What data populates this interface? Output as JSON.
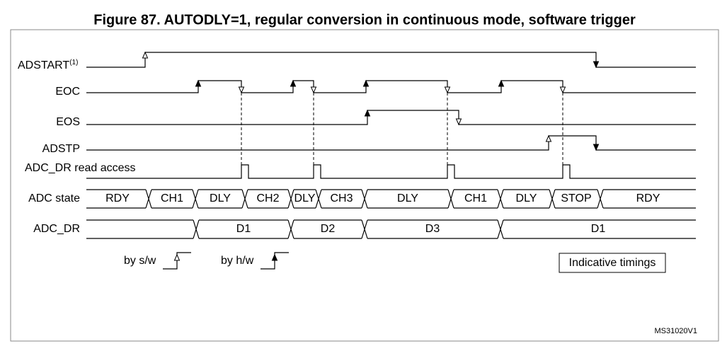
{
  "title": "Figure 87. AUTODLY=1, regular conversion in continuous mode, software trigger",
  "signals": [
    {
      "label": "ADSTART",
      "superscript": "(1)"
    },
    {
      "label": "EOC"
    },
    {
      "label": "EOS"
    },
    {
      "label": "ADSTP"
    },
    {
      "label": "ADC_DR read access"
    }
  ],
  "buses": [
    {
      "label": "ADC state",
      "segments": [
        "RDY",
        "CH1",
        "DLY",
        "CH2",
        "DLY",
        "CH3",
        "DLY",
        "CH1",
        "DLY",
        "STOP",
        "RDY"
      ]
    },
    {
      "label": "ADC_DR",
      "segments": [
        "D1",
        "D2",
        "D3",
        "D1"
      ]
    }
  ],
  "legend": {
    "software": "by s/w",
    "hardware": "by h/w"
  },
  "note": "Indicative timings",
  "id": "MS31020V1"
}
